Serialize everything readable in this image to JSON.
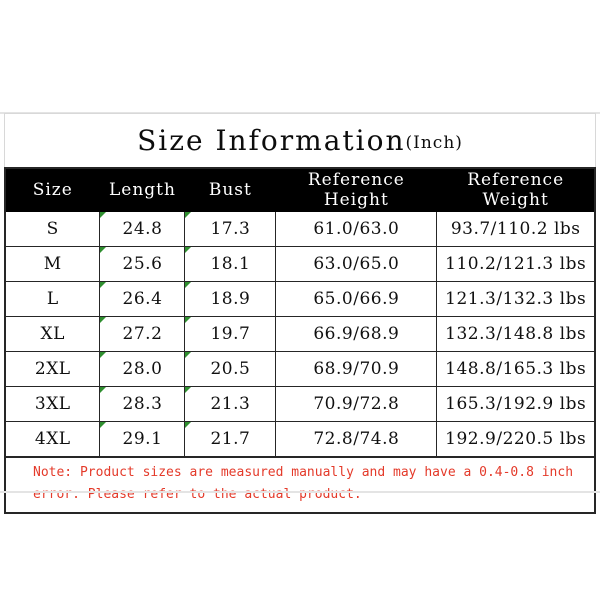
{
  "page": {
    "background": "#ffffff",
    "divider_color": "#e4e4e4"
  },
  "title": {
    "main": "Size Information",
    "unit_suffix": "(Inch)"
  },
  "table": {
    "headers": [
      "Size",
      "Length",
      "Bust",
      "Reference Height",
      "Reference Weight"
    ],
    "rows": [
      [
        "S",
        "24.8",
        "17.3",
        "61.0/63.0",
        "93.7/110.2 lbs"
      ],
      [
        "M",
        "25.6",
        "18.1",
        "63.0/65.0",
        "110.2/121.3 lbs"
      ],
      [
        "L",
        "26.4",
        "18.9",
        "65.0/66.9",
        "121.3/132.3 lbs"
      ],
      [
        "XL",
        "27.2",
        "19.7",
        "66.9/68.9",
        "132.3/148.8 lbs"
      ],
      [
        "2XL",
        "28.0",
        "20.5",
        "68.9/70.9",
        "148.8/165.3 lbs"
      ],
      [
        "3XL",
        "28.3",
        "21.3",
        "70.9/72.8",
        "165.3/192.9 lbs"
      ],
      [
        "4XL",
        "29.1",
        "21.7",
        "72.8/74.8",
        "192.9/220.5 lbs"
      ]
    ],
    "flagged_columns": [
      1,
      2
    ],
    "header_bg": "#000000",
    "header_text_color": "#ffffff",
    "border_color": "#262626",
    "flag_color": "#2f8f2f"
  },
  "note": {
    "color": "#e43a2a",
    "lines": [
      "Note: Product sizes are measured manually and may have a 0.4-0.8 inch",
      "error. Please refer to the actual product."
    ]
  }
}
